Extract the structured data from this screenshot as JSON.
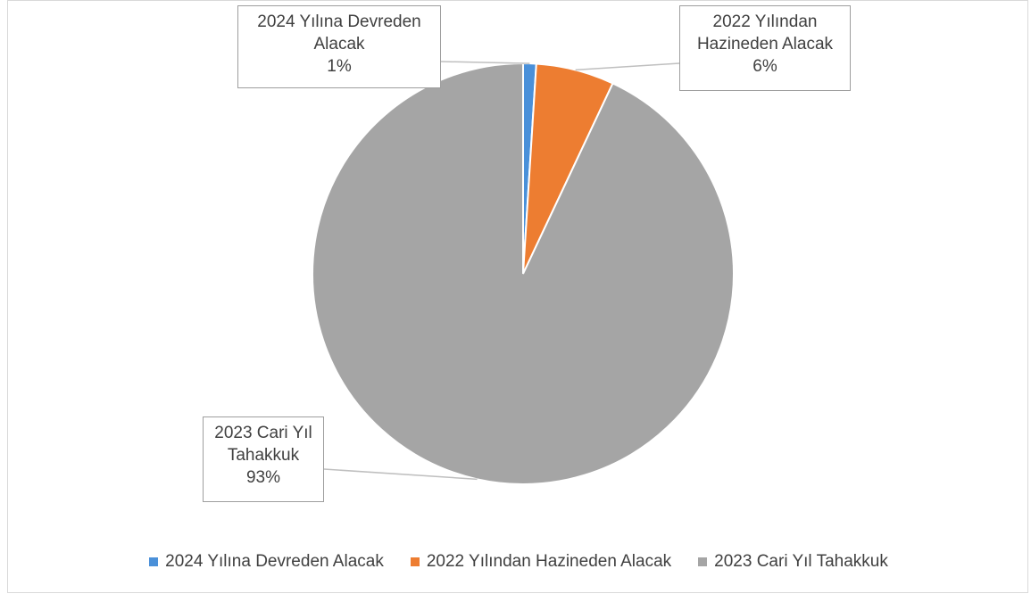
{
  "chart_data": {
    "type": "pie",
    "title": "",
    "categories": [
      "2024 Yılına Devreden Alacak",
      "2022 Yılından Hazineden Alacak",
      "2023 Cari Yıl Tahakkuk"
    ],
    "values": [
      1,
      6,
      93
    ],
    "colors": [
      "#4a90d9",
      "#ed7d31",
      "#a5a5a5"
    ],
    "data_labels": [
      {
        "lines": [
          "2024 Yılına Devreden",
          "Alacak"
        ],
        "pct": "1%"
      },
      {
        "lines": [
          "2022 Yılından",
          "Hazineden Alacak"
        ],
        "pct": "6%"
      },
      {
        "lines": [
          "2023 Cari Yıl",
          "Tahakkuk"
        ],
        "pct": "93%"
      }
    ],
    "legend_position": "bottom"
  }
}
